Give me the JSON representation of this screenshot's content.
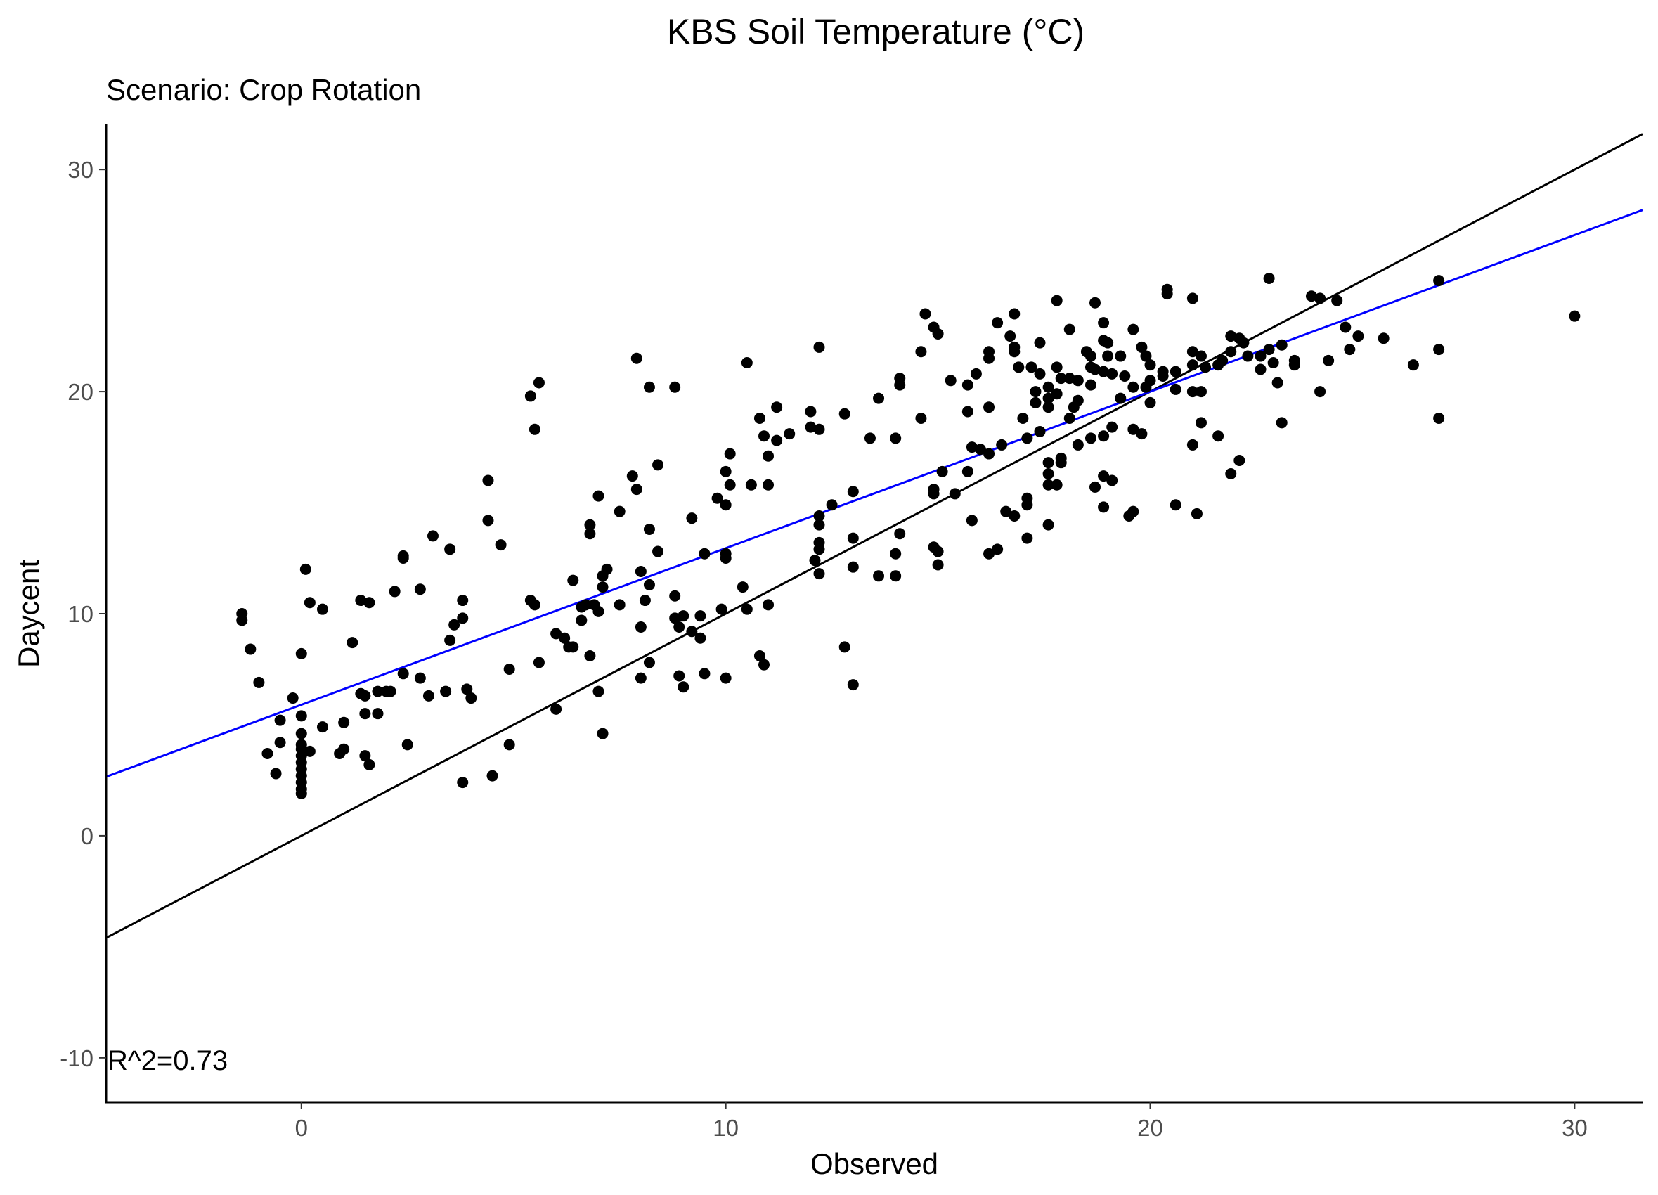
{
  "chart_data": {
    "type": "scatter",
    "title": "KBS Soil Temperature (°C)",
    "subtitle": "Scenario: Crop Rotation",
    "xlabel": "Observed",
    "ylabel": "Daycent",
    "xlim": [
      -4.6,
      31.6
    ],
    "ylim": [
      -12,
      32
    ],
    "xticks": [
      0,
      10,
      20,
      30
    ],
    "yticks": [
      -10,
      0,
      10,
      20,
      30
    ],
    "grid": false,
    "annotation": "R^2=0.73",
    "lines": [
      {
        "kind": "1:1 reference",
        "color": "#000000",
        "slope": 1.0,
        "intercept": 0.0
      },
      {
        "kind": "linear fit",
        "color": "#0000ff",
        "slope": 0.705,
        "intercept": 5.9
      }
    ],
    "points": [
      [
        -1.4,
        10.0
      ],
      [
        -1.4,
        9.7
      ],
      [
        -1.2,
        8.4
      ],
      [
        -1.0,
        6.9
      ],
      [
        -0.8,
        3.7
      ],
      [
        -0.6,
        2.8
      ],
      [
        -0.5,
        4.2
      ],
      [
        -0.5,
        5.2
      ],
      [
        -0.2,
        6.2
      ],
      [
        0.0,
        8.2
      ],
      [
        0.0,
        5.4
      ],
      [
        0.0,
        4.6
      ],
      [
        0.0,
        4.1
      ],
      [
        0.0,
        3.6
      ],
      [
        0.0,
        3.3
      ],
      [
        0.0,
        3.0
      ],
      [
        0.0,
        2.7
      ],
      [
        0.0,
        2.4
      ],
      [
        0.0,
        2.1
      ],
      [
        0.0,
        1.9
      ],
      [
        0.0,
        3.9
      ],
      [
        0.1,
        12.0
      ],
      [
        0.2,
        3.8
      ],
      [
        0.2,
        10.5
      ],
      [
        0.5,
        10.2
      ],
      [
        0.5,
        4.9
      ],
      [
        0.9,
        3.7
      ],
      [
        1.0,
        5.1
      ],
      [
        1.0,
        3.9
      ],
      [
        1.2,
        8.7
      ],
      [
        1.4,
        10.6
      ],
      [
        1.4,
        6.4
      ],
      [
        1.5,
        6.3
      ],
      [
        1.5,
        5.5
      ],
      [
        1.5,
        3.6
      ],
      [
        1.6,
        10.5
      ],
      [
        1.6,
        3.2
      ],
      [
        1.8,
        5.5
      ],
      [
        1.8,
        6.5
      ],
      [
        2.0,
        6.5
      ],
      [
        2.1,
        6.5
      ],
      [
        2.2,
        11.0
      ],
      [
        2.4,
        12.6
      ],
      [
        2.4,
        12.5
      ],
      [
        2.4,
        7.3
      ],
      [
        2.5,
        4.1
      ],
      [
        2.8,
        11.1
      ],
      [
        2.8,
        7.1
      ],
      [
        3.0,
        6.3
      ],
      [
        3.1,
        13.5
      ],
      [
        3.4,
        6.5
      ],
      [
        3.5,
        12.9
      ],
      [
        3.5,
        8.8
      ],
      [
        3.6,
        9.5
      ],
      [
        3.8,
        10.6
      ],
      [
        3.8,
        9.8
      ],
      [
        3.8,
        2.4
      ],
      [
        3.9,
        6.6
      ],
      [
        4.0,
        6.2
      ],
      [
        4.4,
        16.0
      ],
      [
        4.4,
        14.2
      ],
      [
        4.5,
        2.7
      ],
      [
        4.7,
        13.1
      ],
      [
        4.9,
        7.5
      ],
      [
        4.9,
        4.1
      ],
      [
        5.4,
        19.8
      ],
      [
        5.4,
        10.6
      ],
      [
        5.5,
        18.3
      ],
      [
        5.5,
        10.4
      ],
      [
        5.6,
        20.4
      ],
      [
        5.6,
        7.8
      ],
      [
        6.0,
        9.1
      ],
      [
        6.0,
        5.7
      ],
      [
        6.2,
        8.9
      ],
      [
        6.3,
        8.5
      ],
      [
        6.4,
        11.5
      ],
      [
        6.4,
        8.5
      ],
      [
        6.6,
        10.3
      ],
      [
        6.6,
        9.7
      ],
      [
        6.7,
        10.4
      ],
      [
        6.8,
        14.0
      ],
      [
        6.8,
        13.6
      ],
      [
        6.8,
        8.1
      ],
      [
        6.9,
        10.4
      ],
      [
        7.0,
        15.3
      ],
      [
        7.0,
        6.5
      ],
      [
        7.0,
        10.1
      ],
      [
        7.1,
        11.7
      ],
      [
        7.1,
        11.2
      ],
      [
        7.1,
        4.6
      ],
      [
        7.2,
        12.0
      ],
      [
        7.5,
        14.6
      ],
      [
        7.5,
        10.4
      ],
      [
        7.8,
        16.2
      ],
      [
        7.9,
        21.5
      ],
      [
        7.9,
        15.6
      ],
      [
        8.0,
        11.9
      ],
      [
        8.0,
        9.4
      ],
      [
        8.0,
        7.1
      ],
      [
        8.1,
        10.6
      ],
      [
        8.2,
        20.2
      ],
      [
        8.2,
        13.8
      ],
      [
        8.2,
        11.3
      ],
      [
        8.2,
        7.8
      ],
      [
        8.4,
        16.7
      ],
      [
        8.4,
        12.8
      ],
      [
        8.8,
        20.2
      ],
      [
        8.8,
        10.8
      ],
      [
        8.8,
        9.8
      ],
      [
        8.9,
        9.4
      ],
      [
        8.9,
        7.2
      ],
      [
        9.0,
        9.9
      ],
      [
        9.0,
        6.7
      ],
      [
        9.2,
        14.3
      ],
      [
        9.2,
        9.2
      ],
      [
        9.4,
        8.9
      ],
      [
        9.4,
        9.9
      ],
      [
        9.5,
        12.7
      ],
      [
        9.5,
        7.3
      ],
      [
        9.8,
        15.2
      ],
      [
        9.9,
        10.2
      ],
      [
        10.0,
        16.4
      ],
      [
        10.0,
        14.9
      ],
      [
        10.0,
        12.7
      ],
      [
        10.0,
        12.5
      ],
      [
        10.0,
        7.1
      ],
      [
        10.1,
        17.2
      ],
      [
        10.1,
        15.8
      ],
      [
        10.4,
        11.2
      ],
      [
        10.5,
        21.3
      ],
      [
        10.5,
        10.2
      ],
      [
        10.6,
        15.8
      ],
      [
        10.8,
        18.8
      ],
      [
        10.8,
        8.1
      ],
      [
        10.9,
        18.0
      ],
      [
        10.9,
        7.7
      ],
      [
        11.0,
        17.1
      ],
      [
        11.0,
        15.8
      ],
      [
        11.0,
        10.4
      ],
      [
        11.2,
        19.3
      ],
      [
        11.2,
        17.8
      ],
      [
        11.5,
        18.1
      ],
      [
        12.0,
        19.1
      ],
      [
        12.0,
        18.4
      ],
      [
        12.2,
        18.3
      ],
      [
        12.2,
        22.0
      ],
      [
        12.2,
        14.4
      ],
      [
        12.2,
        14.0
      ],
      [
        12.2,
        13.2
      ],
      [
        12.2,
        12.9
      ],
      [
        12.1,
        12.4
      ],
      [
        12.2,
        11.8
      ],
      [
        12.5,
        14.9
      ],
      [
        12.8,
        19.0
      ],
      [
        12.8,
        8.5
      ],
      [
        13.0,
        15.5
      ],
      [
        13.0,
        13.4
      ],
      [
        13.0,
        12.1
      ],
      [
        13.0,
        6.8
      ],
      [
        13.4,
        17.9
      ],
      [
        13.6,
        19.7
      ],
      [
        13.6,
        11.7
      ],
      [
        14.0,
        17.9
      ],
      [
        14.0,
        12.7
      ],
      [
        14.0,
        11.7
      ],
      [
        14.1,
        13.6
      ],
      [
        14.1,
        20.6
      ],
      [
        14.1,
        20.3
      ],
      [
        14.6,
        21.8
      ],
      [
        14.6,
        18.8
      ],
      [
        14.7,
        23.5
      ],
      [
        14.9,
        22.9
      ],
      [
        14.9,
        15.6
      ],
      [
        14.9,
        15.4
      ],
      [
        14.9,
        13.0
      ],
      [
        15.0,
        22.6
      ],
      [
        15.0,
        12.8
      ],
      [
        15.0,
        12.2
      ],
      [
        15.1,
        16.4
      ],
      [
        15.3,
        20.5
      ],
      [
        15.4,
        15.4
      ],
      [
        15.7,
        20.3
      ],
      [
        15.7,
        19.1
      ],
      [
        15.7,
        16.4
      ],
      [
        15.8,
        17.5
      ],
      [
        15.8,
        14.2
      ],
      [
        15.9,
        20.8
      ],
      [
        16.0,
        17.4
      ],
      [
        16.2,
        21.8
      ],
      [
        16.2,
        21.5
      ],
      [
        16.2,
        19.3
      ],
      [
        16.2,
        17.2
      ],
      [
        16.2,
        12.7
      ],
      [
        16.4,
        23.1
      ],
      [
        16.4,
        12.9
      ],
      [
        16.5,
        17.6
      ],
      [
        16.6,
        14.6
      ],
      [
        16.7,
        22.5
      ],
      [
        16.8,
        23.5
      ],
      [
        16.8,
        22.0
      ],
      [
        16.8,
        21.8
      ],
      [
        16.8,
        14.4
      ],
      [
        16.9,
        21.1
      ],
      [
        17.0,
        18.8
      ],
      [
        17.1,
        17.9
      ],
      [
        17.1,
        15.2
      ],
      [
        17.1,
        14.9
      ],
      [
        17.1,
        13.4
      ],
      [
        17.2,
        21.1
      ],
      [
        17.3,
        20.0
      ],
      [
        17.3,
        19.5
      ],
      [
        17.4,
        22.2
      ],
      [
        17.4,
        20.8
      ],
      [
        17.4,
        18.2
      ],
      [
        17.6,
        20.2
      ],
      [
        17.6,
        19.7
      ],
      [
        17.6,
        19.3
      ],
      [
        17.6,
        16.8
      ],
      [
        17.6,
        16.3
      ],
      [
        17.6,
        15.8
      ],
      [
        17.6,
        14.0
      ],
      [
        17.8,
        24.1
      ],
      [
        17.8,
        21.1
      ],
      [
        17.8,
        19.9
      ],
      [
        17.8,
        15.8
      ],
      [
        17.9,
        20.6
      ],
      [
        17.9,
        17.0
      ],
      [
        17.9,
        16.8
      ],
      [
        18.1,
        22.8
      ],
      [
        18.1,
        20.6
      ],
      [
        18.1,
        18.8
      ],
      [
        18.2,
        19.3
      ],
      [
        18.3,
        20.5
      ],
      [
        18.3,
        17.6
      ],
      [
        18.3,
        19.6
      ],
      [
        18.5,
        21.8
      ],
      [
        18.6,
        21.6
      ],
      [
        18.6,
        21.1
      ],
      [
        18.6,
        20.3
      ],
      [
        18.6,
        17.9
      ],
      [
        18.7,
        24.0
      ],
      [
        18.7,
        21.0
      ],
      [
        18.7,
        15.7
      ],
      [
        18.9,
        23.1
      ],
      [
        18.9,
        22.3
      ],
      [
        18.9,
        20.9
      ],
      [
        18.9,
        18.0
      ],
      [
        18.9,
        16.2
      ],
      [
        18.9,
        14.8
      ],
      [
        19.0,
        22.2
      ],
      [
        19.0,
        21.6
      ],
      [
        19.1,
        20.8
      ],
      [
        19.1,
        18.4
      ],
      [
        19.1,
        16.0
      ],
      [
        19.3,
        21.6
      ],
      [
        19.3,
        19.7
      ],
      [
        19.4,
        20.7
      ],
      [
        19.6,
        22.8
      ],
      [
        19.6,
        20.2
      ],
      [
        19.6,
        18.3
      ],
      [
        19.6,
        14.6
      ],
      [
        19.5,
        14.4
      ],
      [
        19.8,
        22.0
      ],
      [
        19.8,
        18.1
      ],
      [
        19.9,
        21.6
      ],
      [
        19.9,
        20.2
      ],
      [
        20.0,
        21.2
      ],
      [
        20.0,
        20.5
      ],
      [
        20.0,
        19.5
      ],
      [
        20.3,
        20.9
      ],
      [
        20.3,
        20.7
      ],
      [
        20.4,
        24.6
      ],
      [
        20.4,
        24.4
      ],
      [
        20.6,
        20.9
      ],
      [
        20.6,
        20.1
      ],
      [
        20.6,
        14.9
      ],
      [
        21.0,
        24.2
      ],
      [
        21.0,
        21.8
      ],
      [
        21.0,
        21.2
      ],
      [
        21.0,
        20.0
      ],
      [
        21.0,
        17.6
      ],
      [
        21.1,
        14.5
      ],
      [
        21.2,
        21.6
      ],
      [
        21.2,
        20.0
      ],
      [
        21.2,
        18.6
      ],
      [
        21.3,
        21.1
      ],
      [
        21.6,
        21.2
      ],
      [
        21.6,
        18.0
      ],
      [
        21.7,
        21.4
      ],
      [
        21.9,
        22.5
      ],
      [
        21.9,
        21.8
      ],
      [
        21.9,
        16.3
      ],
      [
        22.1,
        22.4
      ],
      [
        22.1,
        16.9
      ],
      [
        22.2,
        22.2
      ],
      [
        22.3,
        21.6
      ],
      [
        22.6,
        21.6
      ],
      [
        22.6,
        21.0
      ],
      [
        22.8,
        21.9
      ],
      [
        22.8,
        25.1
      ],
      [
        22.9,
        21.3
      ],
      [
        23.0,
        20.4
      ],
      [
        23.1,
        22.1
      ],
      [
        23.1,
        18.6
      ],
      [
        23.4,
        21.4
      ],
      [
        23.4,
        21.2
      ],
      [
        23.8,
        24.3
      ],
      [
        24.0,
        24.2
      ],
      [
        24.0,
        20.0
      ],
      [
        24.2,
        21.4
      ],
      [
        24.4,
        24.1
      ],
      [
        24.6,
        22.9
      ],
      [
        24.7,
        21.9
      ],
      [
        24.9,
        22.5
      ],
      [
        25.5,
        22.4
      ],
      [
        26.2,
        21.2
      ],
      [
        26.8,
        25.0
      ],
      [
        26.8,
        21.9
      ],
      [
        26.8,
        18.8
      ],
      [
        30.0,
        23.4
      ]
    ]
  }
}
